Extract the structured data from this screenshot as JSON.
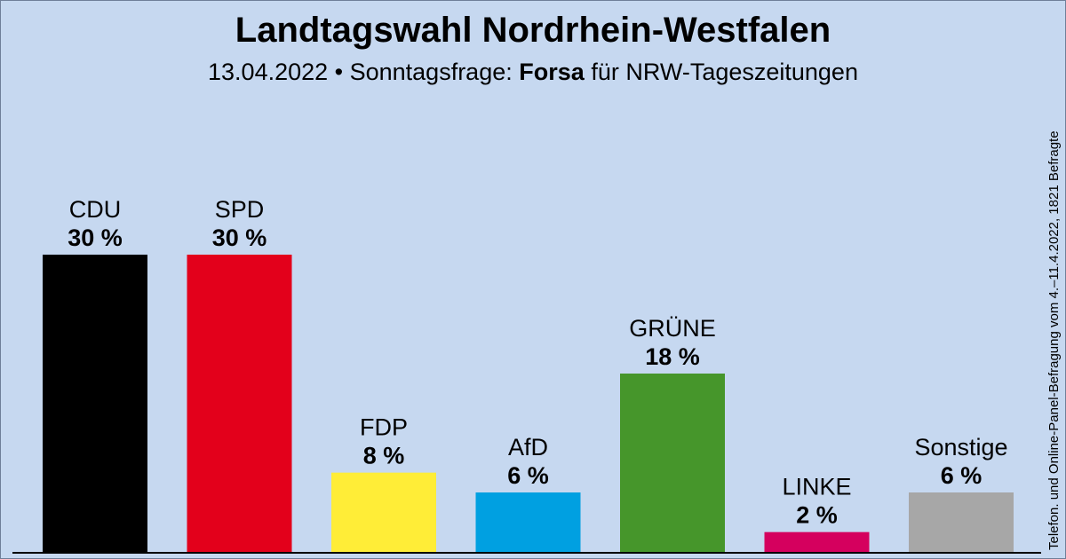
{
  "title": "Landtagswahl Nordrhein-Westfalen",
  "subtitle": {
    "prefix": "13.04.2022 • Sonntagsfrage:",
    "institute": "Forsa",
    "suffix": "für NRW-Tageszeitungen"
  },
  "side_note": "Telefon. und Online-Panel-Befragung vom 4.–11.4.2022, 1821 Befragte",
  "chart_data": {
    "type": "bar",
    "title": "Landtagswahl Nordrhein-Westfalen",
    "xlabel": "",
    "ylabel": "",
    "ylim": [
      0,
      30
    ],
    "unit": "%",
    "categories": [
      "CDU",
      "SPD",
      "FDP",
      "AfD",
      "GRÜNE",
      "LINKE",
      "Sonstige"
    ],
    "values": [
      30,
      30,
      8,
      6,
      18,
      2,
      6
    ],
    "value_labels": [
      "30 %",
      "30 %",
      "8 %",
      "6 %",
      "18 %",
      "2 %",
      "6 %"
    ],
    "colors": [
      "#000000",
      "#e3001b",
      "#ffed37",
      "#00a0e1",
      "#46962b",
      "#d5005e",
      "#a7a7a7"
    ]
  }
}
